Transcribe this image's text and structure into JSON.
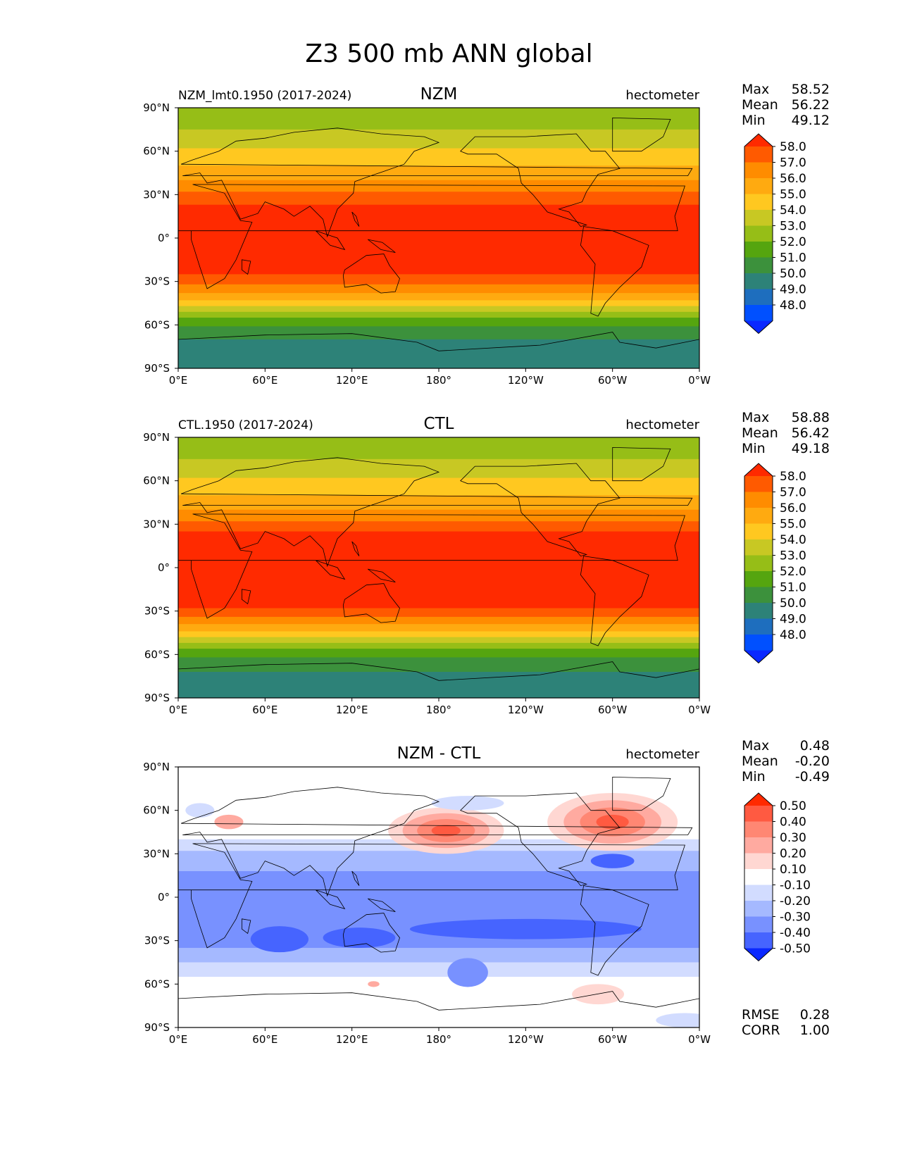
{
  "figure": {
    "title": "Z3 500 mb ANN global",
    "x_ticks": [
      "0°E",
      "60°E",
      "120°E",
      "180°",
      "120°W",
      "60°W",
      "0°W"
    ],
    "y_ticks": [
      "90°N",
      "60°N",
      "30°N",
      "0°",
      "30°S",
      "60°S",
      "90°S"
    ],
    "stats_labels": {
      "max": "Max",
      "mean": "Mean",
      "min": "Min",
      "rmse": "RMSE",
      "corr": "CORR"
    }
  },
  "chart_data": [
    {
      "type": "heatmap",
      "panel": "test",
      "left_title": "NZM_lmt0.1950 (2017-2024)",
      "center_title": "NZM",
      "units": "hectometer",
      "stats": {
        "max": "58.52",
        "mean": "56.22",
        "min": "49.12"
      },
      "xlim": [
        0,
        360
      ],
      "ylim": [
        -90,
        90
      ],
      "levels": [
        "58.0",
        "57.0",
        "56.0",
        "55.0",
        "54.0",
        "53.0",
        "52.0",
        "51.0",
        "50.0",
        "49.0",
        "48.0"
      ],
      "colors": {
        "c_over": "#ff2a00",
        "c58": "#ff5a00",
        "c57": "#ff8c00",
        "c56": "#ffaa10",
        "c55": "#ffc820",
        "c54": "#c8c823",
        "c53": "#96be17",
        "c52": "#55a50f",
        "c51": "#3c913c",
        "c50": "#2d8278",
        "c49": "#1e6ebe",
        "c48": "#0050ff",
        "c_under": "#0a28ff"
      },
      "bands": [
        {
          "color": "c53",
          "from": 90,
          "to": 75
        },
        {
          "color": "c54",
          "from": 75,
          "to": 62
        },
        {
          "color": "c55",
          "from": 62,
          "to": 50
        },
        {
          "color": "c56",
          "from": 50,
          "to": 40
        },
        {
          "color": "c57",
          "from": 40,
          "to": 32
        },
        {
          "color": "c58",
          "from": 32,
          "to": 23
        },
        {
          "color": "c_over",
          "from": 23,
          "to": -25
        },
        {
          "color": "c58",
          "from": -25,
          "to": -32
        },
        {
          "color": "c57",
          "from": -32,
          "to": -38
        },
        {
          "color": "c56",
          "from": -38,
          "to": -43
        },
        {
          "color": "c55",
          "from": -43,
          "to": -47
        },
        {
          "color": "c54",
          "from": -47,
          "to": -51
        },
        {
          "color": "c53",
          "from": -51,
          "to": -55
        },
        {
          "color": "c52",
          "from": -55,
          "to": -61
        },
        {
          "color": "c51",
          "from": -61,
          "to": -70
        },
        {
          "color": "c50",
          "from": -70,
          "to": -90
        }
      ]
    },
    {
      "type": "heatmap",
      "panel": "reference",
      "left_title": "CTL.1950 (2017-2024)",
      "center_title": "CTL",
      "units": "hectometer",
      "stats": {
        "max": "58.88",
        "mean": "56.42",
        "min": "49.18"
      },
      "xlim": [
        0,
        360
      ],
      "ylim": [
        -90,
        90
      ],
      "levels": [
        "58.0",
        "57.0",
        "56.0",
        "55.0",
        "54.0",
        "53.0",
        "52.0",
        "51.0",
        "50.0",
        "49.0",
        "48.0"
      ],
      "colors": {
        "c_over": "#ff2a00",
        "c58": "#ff5a00",
        "c57": "#ff8c00",
        "c56": "#ffaa10",
        "c55": "#ffc820",
        "c54": "#c8c823",
        "c53": "#96be17",
        "c52": "#55a50f",
        "c51": "#3c913c",
        "c50": "#2d8278",
        "c49": "#1e6ebe",
        "c48": "#0050ff",
        "c_under": "#0a28ff"
      },
      "bands": [
        {
          "color": "c53",
          "from": 90,
          "to": 75
        },
        {
          "color": "c54",
          "from": 75,
          "to": 62
        },
        {
          "color": "c55",
          "from": 62,
          "to": 50
        },
        {
          "color": "c56",
          "from": 50,
          "to": 40
        },
        {
          "color": "c57",
          "from": 40,
          "to": 32
        },
        {
          "color": "c58",
          "from": 32,
          "to": 25
        },
        {
          "color": "c_over",
          "from": 25,
          "to": -28
        },
        {
          "color": "c58",
          "from": -28,
          "to": -34
        },
        {
          "color": "c57",
          "from": -34,
          "to": -39
        },
        {
          "color": "c56",
          "from": -39,
          "to": -44
        },
        {
          "color": "c55",
          "from": -44,
          "to": -48
        },
        {
          "color": "c54",
          "from": -48,
          "to": -52
        },
        {
          "color": "c53",
          "from": -52,
          "to": -56
        },
        {
          "color": "c52",
          "from": -56,
          "to": -62
        },
        {
          "color": "c51",
          "from": -62,
          "to": -72
        },
        {
          "color": "c50",
          "from": -72,
          "to": -90
        }
      ]
    },
    {
      "type": "heatmap",
      "panel": "difference",
      "left_title": "",
      "center_title": "NZM - CTL",
      "units": "hectometer",
      "stats": {
        "max": "0.48",
        "mean": "-0.20",
        "min": "-0.49"
      },
      "extra_stats": {
        "rmse": "0.28",
        "corr": "1.00"
      },
      "xlim": [
        0,
        360
      ],
      "ylim": [
        -90,
        90
      ],
      "levels": [
        "0.50",
        "0.40",
        "0.30",
        "0.20",
        "0.10",
        "-0.10",
        "-0.20",
        "-0.30",
        "-0.40",
        "-0.50"
      ],
      "colors": {
        "p_over": "#ff2a00",
        "p4": "#ff5a41",
        "p3": "#ff8773",
        "p2": "#ffaaa0",
        "p1": "#ffd7d2",
        "zero": "#ffffff",
        "n1": "#d2dcff",
        "n2": "#a5b9ff",
        "n3": "#7891ff",
        "n4": "#4664ff",
        "n_under": "#0a28ff"
      },
      "bands": [
        {
          "color": "zero",
          "from": 90,
          "to": 40
        },
        {
          "color": "n1",
          "from": 40,
          "to": 32
        },
        {
          "color": "n2",
          "from": 32,
          "to": 18
        },
        {
          "color": "n3",
          "from": 18,
          "to": -35
        },
        {
          "color": "n2",
          "from": -35,
          "to": -45
        },
        {
          "color": "n1",
          "from": -45,
          "to": -55
        },
        {
          "color": "zero",
          "from": -55,
          "to": -90
        }
      ],
      "blobs": [
        {
          "lon": 185,
          "lat": 46,
          "rlon": 40,
          "rlat": 16,
          "colors": [
            "p1",
            "p2",
            "p3",
            "p4"
          ]
        },
        {
          "lon": 300,
          "lat": 52,
          "rlon": 45,
          "rlat": 20,
          "colors": [
            "p1",
            "p2",
            "p3",
            "p4"
          ]
        },
        {
          "lon": 35,
          "lat": 52,
          "rlon": 10,
          "rlat": 5,
          "colors": [
            "p2"
          ]
        },
        {
          "lon": 135,
          "lat": -60,
          "rlon": 4,
          "rlat": 2,
          "colors": [
            "p2"
          ]
        },
        {
          "lon": 290,
          "lat": -67,
          "rlon": 18,
          "rlat": 7,
          "colors": [
            "p1"
          ]
        },
        {
          "lon": 70,
          "lat": -29,
          "rlon": 20,
          "rlat": 9,
          "colors": [
            "n4"
          ]
        },
        {
          "lon": 125,
          "lat": -28,
          "rlon": 25,
          "rlat": 7,
          "colors": [
            "n4"
          ]
        },
        {
          "lon": 240,
          "lat": -22,
          "rlon": 80,
          "rlat": 7,
          "colors": [
            "n4"
          ]
        },
        {
          "lon": 200,
          "lat": -52,
          "rlon": 14,
          "rlat": 10,
          "colors": [
            "n3"
          ]
        },
        {
          "lon": 300,
          "lat": 25,
          "rlon": 15,
          "rlat": 5,
          "colors": [
            "n4"
          ]
        },
        {
          "lon": 15,
          "lat": 60,
          "rlon": 10,
          "rlat": 5,
          "colors": [
            "n1"
          ]
        },
        {
          "lon": 200,
          "lat": 65,
          "rlon": 25,
          "rlat": 5,
          "colors": [
            "n1"
          ]
        },
        {
          "lon": 350,
          "lat": -85,
          "rlon": 20,
          "rlat": 5,
          "colors": [
            "n1"
          ]
        }
      ]
    }
  ]
}
